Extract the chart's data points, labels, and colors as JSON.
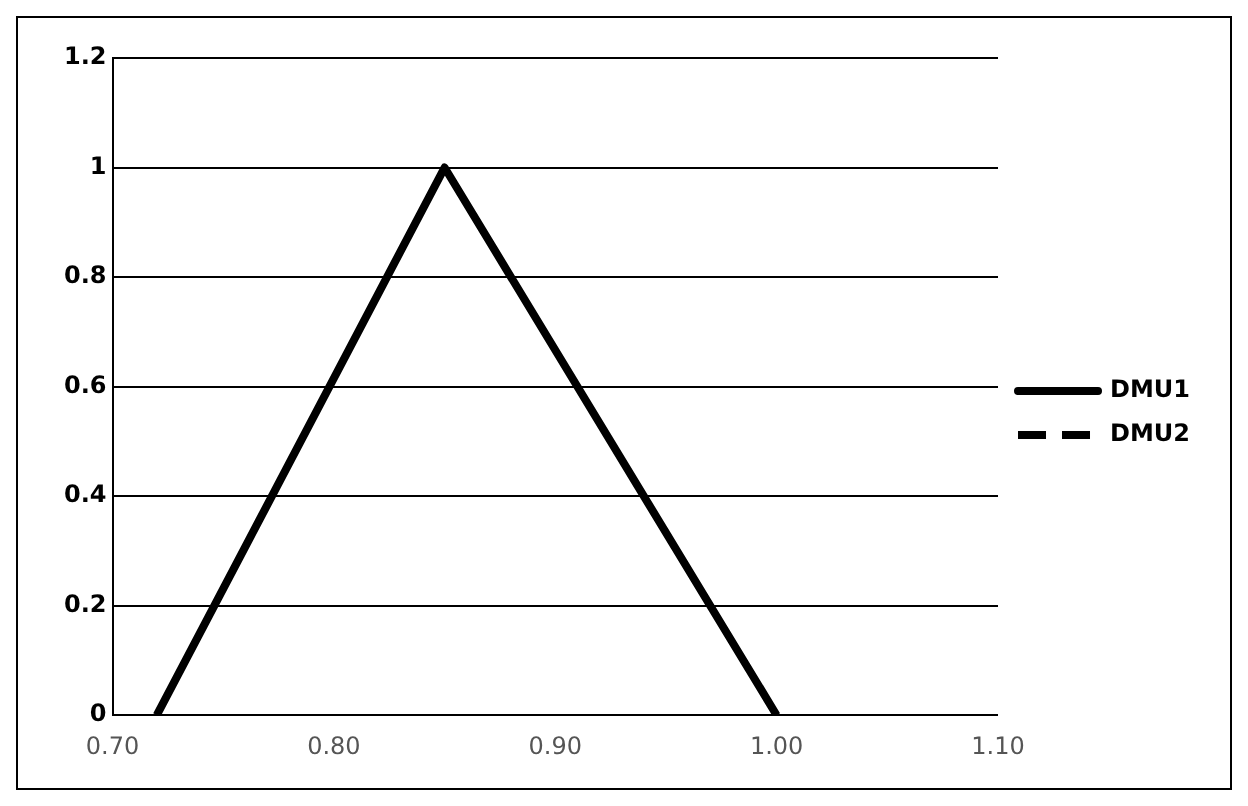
{
  "chart_data": {
    "type": "line",
    "x": [
      0.72,
      0.85,
      1.0
    ],
    "series": [
      {
        "name": "DMU1",
        "color": "#000000",
        "values": [
          0,
          1,
          0
        ],
        "line_style": "solid"
      },
      {
        "name": "DMU2",
        "color": "#000000",
        "values": [
          null,
          null,
          null
        ],
        "line_style": "dashed"
      }
    ],
    "xlim": [
      0.7,
      1.1
    ],
    "xticks": [
      {
        "value": 0.7,
        "label": "0.70"
      },
      {
        "value": 0.8,
        "label": "0.80"
      },
      {
        "value": 0.9,
        "label": "0.90"
      },
      {
        "value": 1.0,
        "label": "1.00"
      },
      {
        "value": 1.1,
        "label": "1.10"
      }
    ],
    "ylim": [
      0,
      1.2
    ],
    "yticks": [
      0,
      0.2,
      0.4,
      0.6,
      0.8,
      1,
      1.2
    ],
    "grid": "y",
    "legend": "right",
    "marker": "none"
  }
}
